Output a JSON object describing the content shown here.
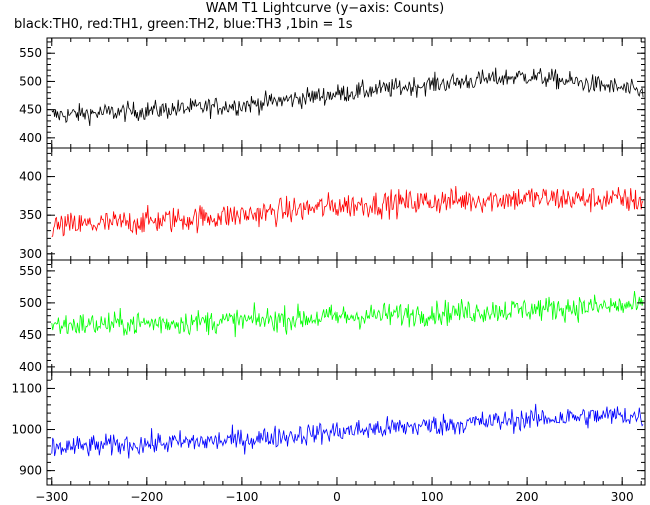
{
  "title": "WAM T1 Lightcurve (y−axis: Counts)",
  "subtitle": "black:TH0, red:TH1, green:TH2, blue:TH3 ,1bin = 1s",
  "chart_data": {
    "type": "line",
    "title": "WAM T1 Lightcurve (y−axis: Counts)",
    "subtitle": "black:TH0, red:TH1, green:TH2, blue:TH3 ,1bin = 1s",
    "xlim": [
      -305,
      324
    ],
    "x_ticks": [
      -300,
      -200,
      -100,
      0,
      100,
      200,
      300
    ],
    "x_tick_labels": [
      "−300",
      "−200",
      "−100",
      "0",
      "100",
      "200",
      "300"
    ],
    "grid": false,
    "panels": [
      {
        "series": "TH0",
        "color": "#000000",
        "ylim": [
          382,
          577
        ],
        "y_ticks": [
          400,
          450,
          500,
          550
        ],
        "approx_trend": {
          "x": [
            -300,
            -200,
            -100,
            0,
            100,
            200,
            300,
            324
          ],
          "y": [
            440,
            448,
            458,
            478,
            495,
            510,
            488,
            478
          ]
        },
        "noise_amplitude": 22
      },
      {
        "series": "TH1",
        "color": "#ff0000",
        "ylim": [
          292,
          437
        ],
        "y_ticks": [
          300,
          350,
          400
        ],
        "approx_trend": {
          "x": [
            -300,
            -200,
            -100,
            0,
            100,
            200,
            300,
            324
          ],
          "y": [
            335,
            342,
            350,
            362,
            368,
            372,
            370,
            368
          ]
        },
        "noise_amplitude": 22
      },
      {
        "series": "TH2",
        "color": "#00ff00",
        "ylim": [
          392,
          567
        ],
        "y_ticks": [
          400,
          450,
          500,
          550
        ],
        "approx_trend": {
          "x": [
            -300,
            -200,
            -100,
            0,
            100,
            200,
            300,
            324
          ],
          "y": [
            465,
            468,
            472,
            478,
            484,
            490,
            495,
            495
          ]
        },
        "noise_amplitude": 25
      },
      {
        "series": "TH3",
        "color": "#0000ff",
        "ylim": [
          865,
          1140
        ],
        "y_ticks": [
          900,
          1000,
          1100
        ],
        "approx_trend": {
          "x": [
            -300,
            -200,
            -100,
            0,
            100,
            200,
            300,
            324
          ],
          "y": [
            955,
            965,
            975,
            995,
            1010,
            1025,
            1035,
            1030
          ]
        },
        "noise_amplitude": 35
      }
    ]
  }
}
